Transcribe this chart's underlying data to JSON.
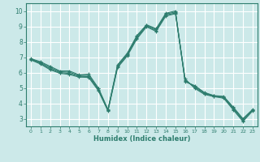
{
  "xlabel": "Humidex (Indice chaleur)",
  "xlim": [
    -0.5,
    23.5
  ],
  "ylim": [
    2.5,
    10.5
  ],
  "xticks": [
    0,
    1,
    2,
    3,
    4,
    5,
    6,
    7,
    8,
    9,
    10,
    11,
    12,
    13,
    14,
    15,
    16,
    17,
    18,
    19,
    20,
    21,
    22,
    23
  ],
  "yticks": [
    3,
    4,
    5,
    6,
    7,
    8,
    9,
    10
  ],
  "background_color": "#cce9e9",
  "grid_color": "#ffffff",
  "line_color": "#2e7d6e",
  "lines": [
    [
      6.9,
      6.7,
      6.4,
      6.1,
      6.1,
      5.85,
      5.9,
      5.0,
      3.6,
      6.5,
      7.25,
      8.4,
      9.1,
      8.85,
      9.85,
      10.0,
      5.4,
      5.15,
      4.7,
      4.5,
      4.45,
      3.75,
      3.0,
      3.6
    ],
    [
      6.88,
      6.65,
      6.32,
      6.05,
      6.02,
      5.8,
      5.82,
      4.95,
      3.57,
      6.45,
      7.2,
      8.33,
      9.07,
      8.8,
      9.8,
      9.93,
      5.45,
      5.1,
      4.68,
      4.48,
      4.42,
      3.7,
      2.95,
      3.57
    ],
    [
      6.85,
      6.6,
      6.24,
      6.0,
      5.94,
      5.75,
      5.74,
      4.88,
      3.53,
      6.38,
      7.13,
      8.25,
      9.02,
      8.73,
      9.73,
      9.87,
      5.52,
      5.03,
      4.63,
      4.45,
      4.38,
      3.63,
      2.88,
      3.53
    ],
    [
      6.82,
      6.55,
      6.18,
      5.95,
      5.87,
      5.7,
      5.68,
      4.82,
      3.5,
      6.32,
      7.07,
      8.18,
      8.97,
      8.67,
      9.67,
      9.82,
      5.58,
      4.97,
      4.58,
      4.43,
      4.33,
      3.57,
      2.82,
      3.5
    ]
  ]
}
